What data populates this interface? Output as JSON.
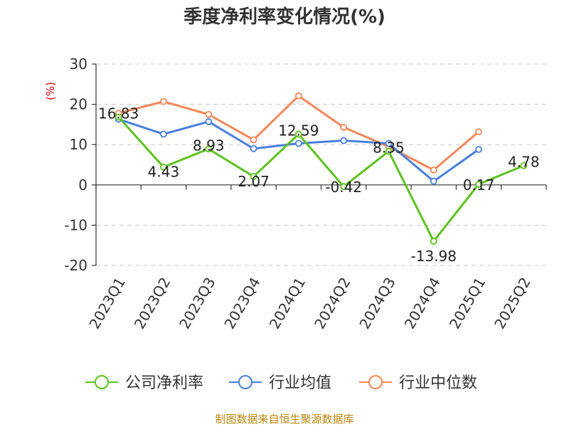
{
  "chart_data": {
    "type": "line",
    "title": "季度净利率变化情况(%)",
    "unit_label": "(%)",
    "categories": [
      "2023Q1",
      "2023Q2",
      "2023Q3",
      "2023Q4",
      "2024Q1",
      "2024Q2",
      "2024Q3",
      "2024Q4",
      "2025Q1",
      "2025Q2"
    ],
    "ylim": [
      -20,
      30
    ],
    "yticks": [
      30,
      20,
      10,
      0,
      -10,
      -20
    ],
    "grid": true,
    "legend_position": "bottom",
    "series": [
      {
        "name": "公司净利率",
        "color": "#5dc21e",
        "values": [
          16.83,
          4.43,
          8.93,
          2.07,
          12.59,
          -0.42,
          8.35,
          -13.98,
          0.17,
          4.78
        ],
        "labels": [
          "16.83",
          "4.43",
          "8.93",
          "2.07",
          "12.59",
          "-0.42",
          "8.35",
          "-13.98",
          "0.17",
          "4.78"
        ]
      },
      {
        "name": "行业均值",
        "color": "#4a7fdc",
        "values": [
          16.3,
          12.6,
          15.7,
          9.0,
          10.3,
          11.0,
          10.3,
          0.9,
          8.8,
          null
        ]
      },
      {
        "name": "行业中位数",
        "color": "#f5875a",
        "values": [
          17.8,
          20.7,
          17.5,
          11.2,
          22.1,
          14.3,
          9.5,
          3.7,
          13.2,
          null
        ]
      }
    ]
  },
  "source": "制图数据来自恒生聚源数据库"
}
